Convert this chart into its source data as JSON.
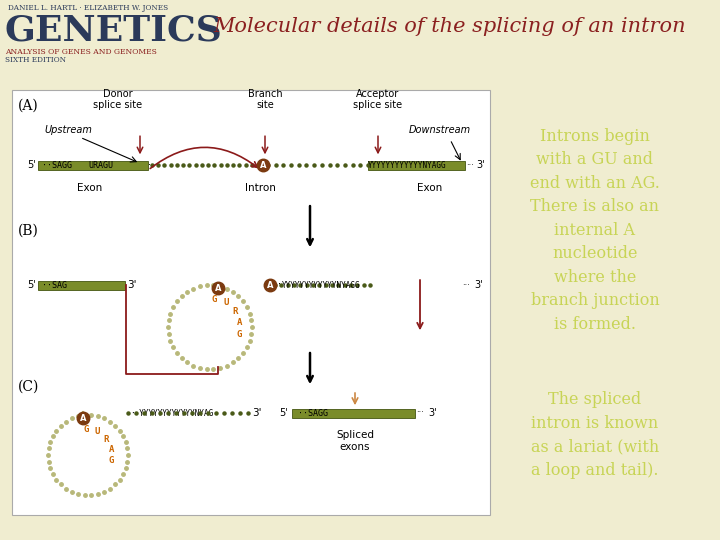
{
  "title": "Molecular details of the splicing of an intron",
  "title_color": "#8B2020",
  "bg_top_color": "#F0EDD0",
  "bg_bottom_color": "#4A5E72",
  "logo_authors": "DANIEL L. HARTL · ELIZABETH W. JONES",
  "logo_genetics": "GENETICS",
  "logo_subtitle": "ANALYSIS OF GENES AND GENOMES",
  "logo_edition": "SIXTH EDITION",
  "text_panel1": "Introns begin\nwith a GU and\nend with an AG.\nThere is also an\ninternal A\nnucleotide\nwhere the\nbranch junction\nis formed.",
  "text_panel2": "The spliced\nintron is known\nas a lariat (with\na loop and tail).",
  "text_color": "#C8D456",
  "olive": "#7A8C2A",
  "dot_color": "#B8B87A",
  "highlight_A_color": "#7B3A10",
  "red_arrow": "#8B1A1A",
  "white": "#FFFFFF",
  "black": "#000000",
  "orange_letter": "#CC6600"
}
